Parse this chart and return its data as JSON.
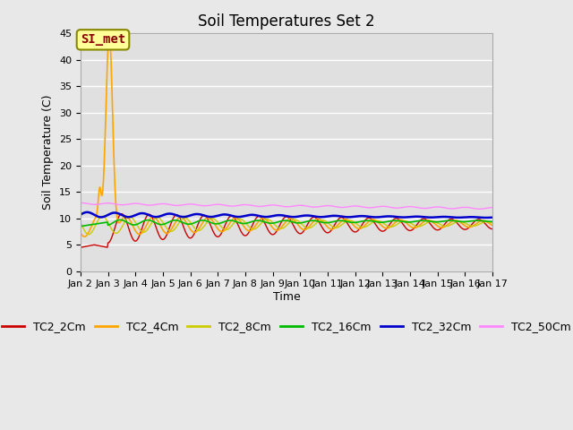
{
  "title": "Soil Temperatures Set 2",
  "xlabel": "Time",
  "ylabel": "Soil Temperature (C)",
  "ylim": [
    0,
    45
  ],
  "yticks": [
    0,
    5,
    10,
    15,
    20,
    25,
    30,
    35,
    40,
    45
  ],
  "x_tick_labels": [
    "Jan 2",
    "Jan 3",
    "Jan 4",
    "Jan 5",
    "Jan 6",
    "Jan 7",
    "Jan 8",
    "Jan 9",
    "Jan 10",
    "Jan 11",
    "Jan 12",
    "Jan 13",
    "Jan 14",
    "Jan 15",
    "Jan 16",
    "Jan 17"
  ],
  "annotation_text": "SI_met",
  "series_colors": {
    "TC2_2Cm": "#cc0000",
    "TC2_4Cm": "#ffa500",
    "TC2_8Cm": "#cccc00",
    "TC2_16Cm": "#00bb00",
    "TC2_32Cm": "#0000cc",
    "TC2_50Cm": "#ff88ff"
  },
  "fig_bg_color": "#e8e8e8",
  "plot_bg_color": "#e0e0e0",
  "grid_color": "#ffffff",
  "title_fontsize": 12,
  "axis_label_fontsize": 9,
  "tick_fontsize": 8,
  "legend_fontsize": 9
}
